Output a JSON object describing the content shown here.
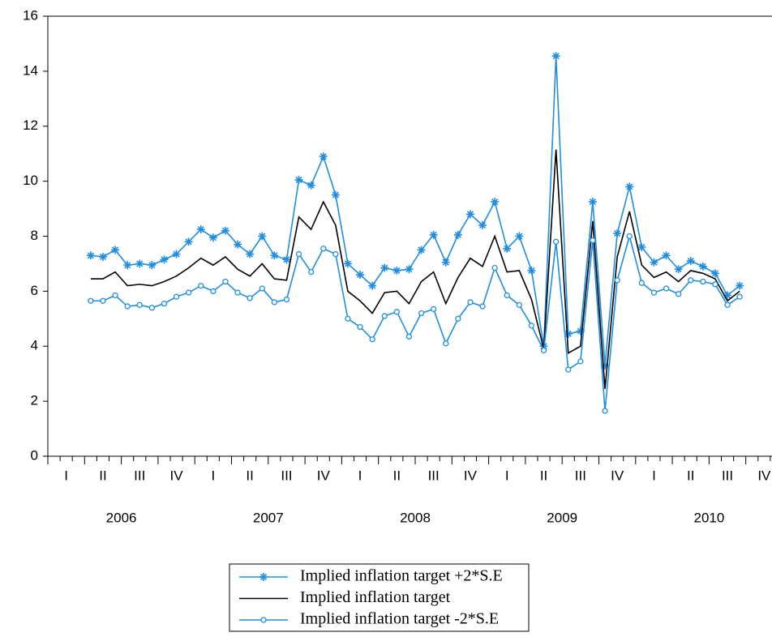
{
  "chart_data": {
    "type": "line",
    "categories": [
      null,
      null,
      null,
      null,
      null,
      null,
      null,
      null,
      null,
      null,
      null,
      null,
      null,
      null,
      null,
      null,
      null,
      null,
      null,
      null,
      null,
      null,
      null,
      null,
      null,
      null,
      null,
      null,
      null,
      null,
      null,
      null,
      null,
      null,
      null,
      null,
      null,
      null,
      null,
      null,
      null,
      null,
      null,
      null,
      null,
      null,
      null,
      null,
      null,
      null,
      null,
      null,
      null,
      null,
      null,
      null,
      null,
      null,
      null,
      null
    ],
    "quarter_labels": [
      "I",
      "II",
      "III",
      "IV",
      "I",
      "II",
      "III",
      "IV",
      "I",
      "II",
      "III",
      "IV",
      "I",
      "II",
      "III",
      "IV",
      "I",
      "II",
      "III",
      "IV"
    ],
    "year_labels": [
      "2006",
      "2007",
      "2008",
      "2009",
      "2010"
    ],
    "ylim": [
      0,
      16
    ],
    "yticks": [
      0,
      2,
      4,
      6,
      8,
      10,
      12,
      14,
      16
    ],
    "legend": "bottom",
    "series": [
      {
        "name": "Implied inflation target +2*S.E",
        "color": "#1f8ee0",
        "marker": "star",
        "values": [
          null,
          null,
          null,
          7.3,
          7.25,
          7.5,
          6.95,
          7.0,
          6.95,
          7.15,
          7.35,
          7.8,
          8.25,
          7.95,
          8.2,
          7.7,
          7.35,
          8.0,
          7.3,
          7.15,
          10.05,
          9.85,
          10.9,
          9.5,
          7.0,
          6.6,
          6.2,
          6.85,
          6.75,
          6.8,
          7.5,
          8.05,
          7.05,
          8.05,
          8.8,
          8.4,
          9.25,
          7.55,
          8.0,
          6.75,
          4.0,
          14.55,
          4.45,
          4.55,
          9.25,
          3.3,
          8.1,
          9.8,
          7.6,
          7.05,
          7.3,
          6.8,
          7.1,
          6.9,
          6.65,
          5.85,
          6.2,
          null,
          null,
          null
        ]
      },
      {
        "name": "Implied inflation target",
        "color": "#000000",
        "marker": null,
        "values": [
          null,
          null,
          null,
          6.45,
          6.45,
          6.7,
          6.2,
          6.25,
          6.2,
          6.35,
          6.55,
          6.85,
          7.2,
          6.95,
          7.25,
          6.8,
          6.55,
          7.0,
          6.45,
          6.4,
          8.7,
          8.25,
          9.25,
          8.4,
          6.0,
          5.65,
          5.2,
          5.95,
          6.0,
          5.55,
          6.35,
          6.7,
          5.55,
          6.5,
          7.2,
          6.9,
          8.0,
          6.7,
          6.75,
          5.7,
          3.9,
          11.15,
          3.75,
          4.0,
          8.55,
          2.45,
          7.25,
          8.9,
          6.95,
          6.5,
          6.7,
          6.35,
          6.75,
          6.65,
          6.45,
          5.65,
          6.0,
          null,
          null,
          null
        ]
      },
      {
        "name": "Implied inflation target -2*S.E",
        "color": "#1f8ee0",
        "marker": "circle",
        "values": [
          null,
          null,
          null,
          5.65,
          5.65,
          5.85,
          5.45,
          5.5,
          5.4,
          5.55,
          5.8,
          5.95,
          6.2,
          6.0,
          6.35,
          5.95,
          5.75,
          6.1,
          5.6,
          5.7,
          7.35,
          6.7,
          7.55,
          7.35,
          5.0,
          4.7,
          4.25,
          5.1,
          5.25,
          4.35,
          5.2,
          5.35,
          4.1,
          5.0,
          5.6,
          5.45,
          6.85,
          5.85,
          5.5,
          4.75,
          3.85,
          7.8,
          3.15,
          3.45,
          7.85,
          1.65,
          6.4,
          8.0,
          6.3,
          5.95,
          6.1,
          5.9,
          6.4,
          6.35,
          6.25,
          5.5,
          5.8,
          null,
          null,
          null
        ]
      }
    ]
  }
}
